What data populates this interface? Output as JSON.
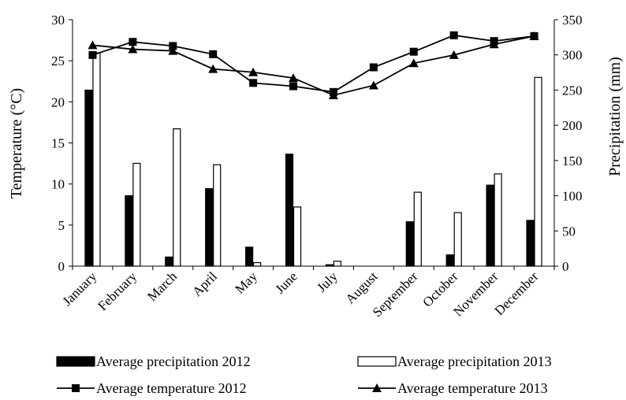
{
  "chart_data": {
    "type": "bar+line",
    "title": "",
    "categories": [
      "January",
      "February",
      "March",
      "April",
      "May",
      "June",
      "July",
      "August",
      "September",
      "October",
      "November",
      "December"
    ],
    "ylabel_left": "Temperature (°C)",
    "ylabel_right": "Precipitation (mm)",
    "ylim_left": [
      0,
      30
    ],
    "ylim_right": [
      0,
      350
    ],
    "yticks_left": [
      0,
      5,
      10,
      15,
      20,
      25,
      30
    ],
    "yticks_right": [
      0,
      50,
      100,
      150,
      200,
      250,
      300,
      350
    ],
    "grid": false,
    "legend_position": "bottom",
    "bar_series": [
      {
        "name": "Average precipitation 2012",
        "color": "#000000",
        "fill": "solid",
        "values": [
          250,
          100,
          13,
          110,
          27,
          159,
          2,
          0,
          63,
          16,
          115,
          65
        ]
      },
      {
        "name": "Average precipitation 2013",
        "color": "#000000",
        "fill": "hollow",
        "values": [
          303,
          146,
          195,
          144,
          5,
          84,
          7,
          0,
          105,
          76,
          131,
          268
        ]
      }
    ],
    "line_series": [
      {
        "name": "Average temperature 2012",
        "marker": "square",
        "values": [
          25.7,
          27.3,
          26.8,
          25.8,
          22.3,
          21.9,
          21.2,
          24.2,
          26.1,
          28.1,
          27.4,
          28.0
        ]
      },
      {
        "name": "Average temperature 2013",
        "marker": "triangle",
        "values": [
          26.9,
          26.4,
          26.2,
          24.0,
          23.6,
          22.9,
          20.8,
          22.0,
          24.7,
          25.7,
          27.0,
          28.0
        ]
      }
    ]
  }
}
